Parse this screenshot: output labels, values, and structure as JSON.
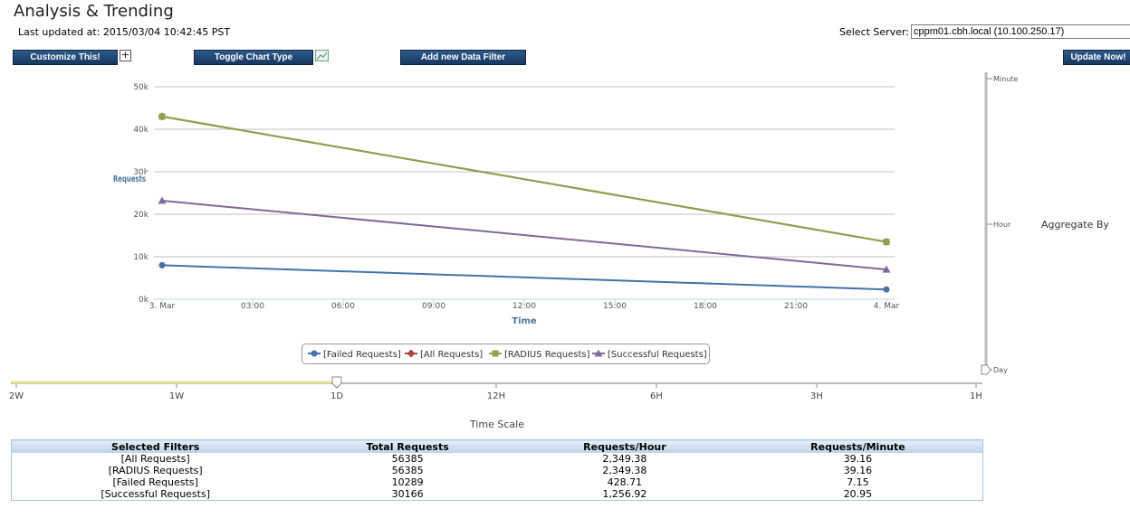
{
  "header": {
    "title": "Analysis & Trending",
    "last_updated": "Last updated at: 2015/03/04 10:42:45 PST",
    "server_label": "Select Server:",
    "server_value": "cppm01.cbh.local (10.100.250.17)"
  },
  "toolbar": {
    "customize": "Customize This!",
    "toggle": "Toggle Chart Type",
    "add_filter": "Add new Data Filter",
    "update": "Update Now!"
  },
  "chart_data": {
    "type": "line",
    "y_label": "Requests",
    "x_label": "Time",
    "x": [
      0,
      24
    ],
    "xlim": [
      0,
      24
    ],
    "xticks": [
      {
        "value": 0,
        "label": "3. Mar"
      },
      {
        "value": 3,
        "label": "03:00"
      },
      {
        "value": 6,
        "label": "06:00"
      },
      {
        "value": 9,
        "label": "09:00"
      },
      {
        "value": 12,
        "label": "12:00"
      },
      {
        "value": 15,
        "label": "15:00"
      },
      {
        "value": 18,
        "label": "18:00"
      },
      {
        "value": 21,
        "label": "21:00"
      },
      {
        "value": 24,
        "label": "4. Mar"
      }
    ],
    "ylim": [
      0,
      50000
    ],
    "yticks": [
      {
        "value": 0,
        "label": "0k"
      },
      {
        "value": 10000,
        "label": "10k"
      },
      {
        "value": 20000,
        "label": "20k"
      },
      {
        "value": 30000,
        "label": "30k"
      },
      {
        "value": 40000,
        "label": "40k"
      },
      {
        "value": 50000,
        "label": "50k"
      }
    ],
    "grid": true,
    "series": [
      {
        "name": "[Failed Requests]",
        "color": "#4572a7",
        "marker": "circle",
        "values": [
          8000,
          2300
        ]
      },
      {
        "name": "[All Requests]",
        "color": "#aa4643",
        "marker": "diamond",
        "values": [
          43000,
          13500
        ]
      },
      {
        "name": "[RADIUS Requests]",
        "color": "#89a54e",
        "marker": "square",
        "values": [
          43000,
          13500
        ]
      },
      {
        "name": "[Successful Requests]",
        "color": "#80699b",
        "marker": "triangle",
        "values": [
          23200,
          7000
        ]
      }
    ]
  },
  "aggregate": {
    "title": "Aggregate By",
    "levels": [
      "Minute",
      "Hour",
      "Day"
    ]
  },
  "time_scale": {
    "title": "Time Scale",
    "labels": [
      "2W",
      "1W",
      "1D",
      "12H",
      "6H",
      "3H",
      "1H"
    ]
  },
  "table": {
    "columns": [
      "Selected Filters",
      "Total Requests",
      "Requests/Hour",
      "Requests/Minute"
    ],
    "rows": [
      [
        "[All Requests]",
        "56385",
        "2,349.38",
        "39.16"
      ],
      [
        "[RADIUS Requests]",
        "56385",
        "2,349.38",
        "39.16"
      ],
      [
        "[Failed Requests]",
        "10289",
        "428.71",
        "7.15"
      ],
      [
        "[Successful Requests]",
        "30166",
        "1,256.92",
        "20.95"
      ]
    ]
  }
}
